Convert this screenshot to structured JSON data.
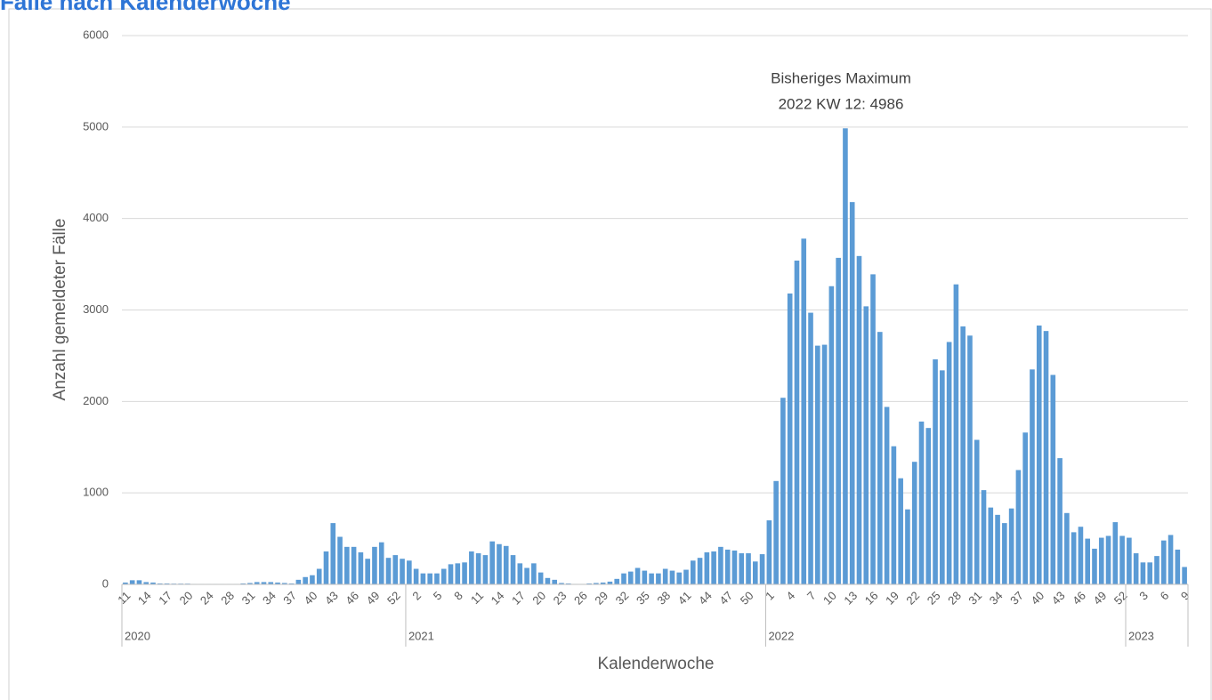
{
  "chart_data": {
    "type": "bar",
    "title": "Fälle nach Kalenderwoche",
    "ylabel": "Anzahl gemeldeter Fälle",
    "xlabel": "Kalenderwoche",
    "annotation": [
      "Bisheriges Maximum",
      "2022 KW 12: 4986"
    ],
    "color": "#5b9bd5",
    "grid": true,
    "ylim": [
      0,
      6000
    ],
    "yticks": [
      0,
      1000,
      2000,
      3000,
      4000,
      5000,
      6000
    ],
    "groups": [
      {
        "label": "2020",
        "count": 41
      },
      {
        "label": "2021",
        "count": 52
      },
      {
        "label": "2022",
        "count": 52
      },
      {
        "label": "2023",
        "count": 9
      }
    ],
    "categories": [
      "11",
      null,
      null,
      "14",
      null,
      null,
      "17",
      null,
      null,
      "20",
      null,
      null,
      "24",
      null,
      null,
      "28",
      null,
      null,
      "31",
      null,
      null,
      "34",
      null,
      null,
      "37",
      null,
      null,
      "40",
      null,
      null,
      "43",
      null,
      null,
      "46",
      null,
      null,
      "49",
      null,
      null,
      "52",
      null,
      null,
      "2",
      null,
      null,
      "5",
      null,
      null,
      "8",
      null,
      null,
      "11",
      null,
      null,
      "14",
      null,
      null,
      "17",
      null,
      null,
      "20",
      null,
      null,
      "23",
      null,
      null,
      "26",
      null,
      null,
      "29",
      null,
      null,
      "32",
      null,
      null,
      "35",
      null,
      null,
      "38",
      null,
      null,
      "41",
      null,
      null,
      "44",
      null,
      null,
      "47",
      null,
      null,
      "50",
      null,
      null,
      "1",
      null,
      null,
      "4",
      null,
      null,
      "7",
      null,
      null,
      "10",
      null,
      null,
      "13",
      null,
      null,
      "16",
      null,
      null,
      "19",
      null,
      null,
      "22",
      null,
      null,
      "25",
      null,
      null,
      "28",
      null,
      null,
      "31",
      null,
      null,
      "34",
      null,
      null,
      "37",
      null,
      null,
      "40",
      null,
      null,
      "43",
      null,
      null,
      "46",
      null,
      null,
      "49",
      null,
      null,
      "52",
      null,
      null,
      "3",
      null,
      null,
      "6",
      null,
      null,
      "9"
    ],
    "values": [
      20,
      45,
      45,
      25,
      20,
      10,
      10,
      8,
      8,
      8,
      5,
      5,
      5,
      5,
      5,
      5,
      5,
      10,
      15,
      25,
      25,
      25,
      20,
      15,
      10,
      50,
      80,
      100,
      170,
      360,
      670,
      520,
      410,
      410,
      350,
      280,
      410,
      460,
      290,
      320,
      280,
      260,
      170,
      120,
      120,
      120,
      170,
      220,
      230,
      240,
      360,
      340,
      320,
      470,
      440,
      420,
      320,
      230,
      180,
      230,
      130,
      70,
      50,
      15,
      10,
      5,
      5,
      10,
      15,
      20,
      30,
      60,
      120,
      140,
      180,
      150,
      120,
      120,
      170,
      150,
      130,
      160,
      260,
      290,
      350,
      360,
      410,
      380,
      370,
      340,
      340,
      250,
      330,
      700,
      1130,
      2040,
      3180,
      3540,
      3780,
      2970,
      2610,
      2620,
      3260,
      3570,
      4986,
      4180,
      3590,
      3040,
      3390,
      2760,
      1940,
      1510,
      1160,
      820,
      1340,
      1780,
      1710,
      2460,
      2340,
      2650,
      3280,
      2820,
      2720,
      1580,
      1030,
      840,
      760,
      670,
      830,
      1250,
      1660,
      2350,
      2830,
      2770,
      2290,
      1380,
      780,
      570,
      630,
      500,
      390,
      510,
      530,
      680,
      530,
      510,
      340,
      240,
      240,
      310,
      480,
      540,
      380,
      190
    ]
  }
}
